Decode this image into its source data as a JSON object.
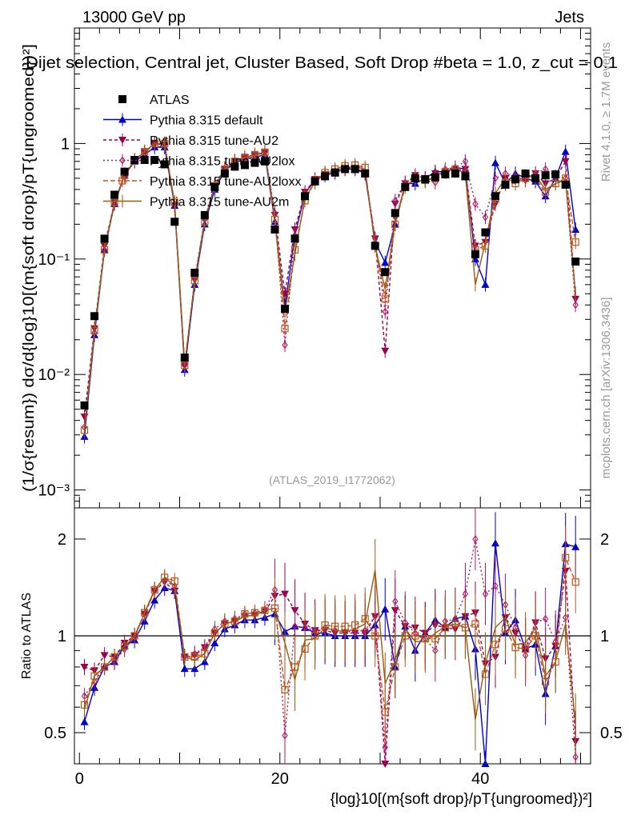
{
  "header": {
    "left": "13000 GeV pp",
    "right": "Jets",
    "title": "Dijet selection, Central jet, Cluster Based, Soft Drop #beta = 1.0, z_cut = 0.1"
  },
  "side_labels": {
    "rivet": "Rivet 4.1.0, ≥ 1.7M events",
    "mcplots": "mcplots.cern.ch [arXiv:1306.3436]"
  },
  "watermark": "(ATLAS_2019_I1772062)",
  "axes": {
    "main_ylabel": "(1/σ{resum}) dσ/d{log}10[(m{soft drop}/pT{ungroomed})²]",
    "ratio_ylabel": "Ratio to ATLAS",
    "xlabel": "{log}10[(m{soft drop}/pT{ungroomed})²]",
    "x_ticks": [
      "0",
      "20",
      "40"
    ],
    "main_y_ticks": [
      "10⁻³",
      "10⁻²",
      "10⁻¹",
      "1"
    ],
    "ratio_y_ticks": [
      "0.5",
      "1",
      "2"
    ]
  },
  "legend": [
    {
      "label": "ATLAS",
      "color": "#000000",
      "marker": "square"
    },
    {
      "label": "Pythia 8.315 default",
      "color": "#0000cc",
      "marker": "triangle"
    },
    {
      "label": "Pythia 8.315 tune-AU2",
      "color": "#99004d",
      "marker": "triangle-down"
    },
    {
      "label": "Pythia 8.315 tune-AU2lox",
      "color": "#b0176a",
      "marker": "diamond"
    },
    {
      "label": "Pythia 8.315 tune-AU2loxx",
      "color": "#c0541a",
      "marker": "open-square"
    },
    {
      "label": "Pythia 8.315 tune-AU2m",
      "color": "#9a5a10",
      "marker": "line"
    }
  ],
  "chart_data": {
    "type": "scatter",
    "title": "Dijet selection, Central jet, Cluster Based, Soft Drop #beta = 1.0, z_cut = 0.1",
    "xlabel": "{log}10[(m{soft drop}/pT{ungroomed})²]",
    "ylabel": "(1/σ{resum}) dσ/d{log}10[(m{soft drop}/pT{ungroomed})²]",
    "xlim": [
      -0.5,
      51
    ],
    "ylim_main": [
      0.0007,
      10
    ],
    "yscale_main": "log",
    "ylim_ratio": [
      0.4,
      2.5
    ],
    "yscale_ratio": "log",
    "x": [
      0.5,
      1.5,
      2.5,
      3.5,
      4.5,
      5.5,
      6.5,
      7.5,
      8.5,
      9.5,
      10.5,
      11.5,
      12.5,
      13.5,
      14.5,
      15.5,
      16.5,
      17.5,
      18.5,
      19.5,
      20.5,
      21.5,
      22.5,
      23.5,
      24.5,
      25.5,
      26.5,
      27.5,
      28.5,
      29.5,
      30.5,
      31.5,
      32.5,
      33.5,
      34.5,
      35.5,
      36.5,
      37.5,
      38.5,
      39.5,
      40.5,
      41.5,
      42.5,
      43.5,
      44.5,
      45.5,
      46.5,
      47.5,
      48.5,
      49.5
    ],
    "series": [
      {
        "name": "ATLAS",
        "values": [
          0.0054,
          0.032,
          0.15,
          0.36,
          0.57,
          0.72,
          0.72,
          0.72,
          0.66,
          0.21,
          0.014,
          0.076,
          0.24,
          0.42,
          0.55,
          0.63,
          0.65,
          0.68,
          0.7,
          0.18,
          0.037,
          0.15,
          0.35,
          0.47,
          0.52,
          0.56,
          0.6,
          0.6,
          0.55,
          0.13,
          0.077,
          0.25,
          0.42,
          0.5,
          0.49,
          0.51,
          0.54,
          0.55,
          0.52,
          0.11,
          0.17,
          0.35,
          0.44,
          0.49,
          0.55,
          0.5,
          0.53,
          0.54,
          0.44,
          0.095
        ]
      },
      {
        "name": "Pythia 8.315 default",
        "values": [
          0.0029,
          0.022,
          0.12,
          0.3,
          0.53,
          0.7,
          0.8,
          0.93,
          0.93,
          0.29,
          0.011,
          0.06,
          0.2,
          0.4,
          0.58,
          0.68,
          0.73,
          0.76,
          0.8,
          0.21,
          0.038,
          0.16,
          0.37,
          0.48,
          0.53,
          0.56,
          0.6,
          0.6,
          0.55,
          0.14,
          0.093,
          0.2,
          0.45,
          0.45,
          0.5,
          0.57,
          0.57,
          0.62,
          0.6,
          0.1,
          0.06,
          0.68,
          0.45,
          0.55,
          0.5,
          0.47,
          0.35,
          0.5,
          0.85,
          0.18
        ]
      },
      {
        "name": "Pythia 8.315 tune-AU2",
        "values": [
          0.0043,
          0.025,
          0.13,
          0.31,
          0.54,
          0.72,
          0.84,
          0.99,
          0.97,
          0.29,
          0.012,
          0.066,
          0.22,
          0.43,
          0.6,
          0.7,
          0.75,
          0.79,
          0.83,
          0.24,
          0.05,
          0.18,
          0.38,
          0.49,
          0.54,
          0.57,
          0.61,
          0.61,
          0.56,
          0.15,
          0.016,
          0.3,
          0.45,
          0.53,
          0.5,
          0.55,
          0.57,
          0.58,
          0.6,
          0.13,
          0.14,
          0.3,
          0.5,
          0.5,
          0.5,
          0.55,
          0.45,
          0.5,
          0.7,
          0.045
        ]
      },
      {
        "name": "Pythia 8.315 tune-AU2lox",
        "values": [
          0.0035,
          0.023,
          0.12,
          0.3,
          0.52,
          0.71,
          0.84,
          0.99,
          0.98,
          0.3,
          0.012,
          0.067,
          0.22,
          0.44,
          0.61,
          0.71,
          0.76,
          0.8,
          0.85,
          0.25,
          0.018,
          0.16,
          0.37,
          0.49,
          0.55,
          0.58,
          0.62,
          0.62,
          0.57,
          0.15,
          0.035,
          0.32,
          0.46,
          0.51,
          0.48,
          0.46,
          0.6,
          0.62,
          0.7,
          0.3,
          0.23,
          0.5,
          0.55,
          0.52,
          0.48,
          0.55,
          0.6,
          0.52,
          0.5,
          0.04
        ]
      },
      {
        "name": "Pythia 8.315 tune-AU2loxx",
        "values": [
          0.0033,
          0.024,
          0.12,
          0.31,
          0.53,
          0.72,
          0.85,
          1.0,
          1.0,
          0.31,
          0.012,
          0.065,
          0.21,
          0.43,
          0.6,
          0.7,
          0.76,
          0.8,
          0.84,
          0.22,
          0.025,
          0.12,
          0.32,
          0.47,
          0.56,
          0.6,
          0.64,
          0.65,
          0.62,
          0.13,
          0.045,
          0.2,
          0.42,
          0.5,
          0.48,
          0.5,
          0.57,
          0.6,
          0.55,
          0.12,
          0.13,
          0.33,
          0.46,
          0.45,
          0.5,
          0.5,
          0.38,
          0.45,
          0.5,
          0.14
        ]
      },
      {
        "name": "Pythia 8.315 tune-AU2m",
        "values": [
          0.0032,
          0.024,
          0.12,
          0.31,
          0.53,
          0.71,
          0.85,
          1.0,
          1.0,
          0.3,
          0.012,
          0.064,
          0.21,
          0.43,
          0.6,
          0.7,
          0.75,
          0.79,
          0.84,
          0.22,
          0.035,
          0.11,
          0.34,
          0.46,
          0.55,
          0.58,
          0.62,
          0.63,
          0.6,
          0.13,
          0.055,
          0.21,
          0.44,
          0.48,
          0.47,
          0.52,
          0.58,
          0.6,
          0.55,
          0.06,
          0.14,
          0.37,
          0.5,
          0.46,
          0.52,
          0.53,
          0.4,
          0.45,
          0.48,
          0.05
        ]
      }
    ],
    "ratio_series": [
      {
        "name": "Pythia 8.315 default",
        "values": [
          0.54,
          0.69,
          0.8,
          0.83,
          0.93,
          0.97,
          1.11,
          1.29,
          1.41,
          1.38,
          0.79,
          0.79,
          0.83,
          0.95,
          1.05,
          1.08,
          1.12,
          1.12,
          1.14,
          1.17,
          1.03,
          1.07,
          1.06,
          1.02,
          1.02,
          1.0,
          1.0,
          1.0,
          1.0,
          1.08,
          1.21,
          0.8,
          1.07,
          0.9,
          1.02,
          1.12,
          1.06,
          1.13,
          1.15,
          0.91,
          0.35,
          1.94,
          1.02,
          1.12,
          0.91,
          0.94,
          0.66,
          0.93,
          1.93,
          1.89
        ]
      },
      {
        "name": "Pythia 8.315 tune-AU2",
        "values": [
          0.8,
          0.78,
          0.87,
          0.86,
          0.95,
          1.0,
          1.17,
          1.38,
          1.47,
          1.38,
          0.86,
          0.87,
          0.92,
          1.02,
          1.09,
          1.11,
          1.15,
          1.16,
          1.19,
          1.33,
          1.35,
          1.2,
          1.09,
          1.04,
          1.04,
          1.02,
          1.02,
          1.02,
          1.02,
          1.15,
          0.21,
          1.2,
          1.07,
          1.06,
          1.02,
          1.08,
          1.06,
          1.05,
          1.15,
          1.18,
          0.82,
          0.86,
          1.14,
          1.02,
          0.91,
          1.1,
          0.85,
          0.93,
          1.59,
          0.47
        ]
      },
      {
        "name": "Pythia 8.315 tune-AU2lox",
        "values": [
          0.65,
          0.72,
          0.8,
          0.83,
          0.91,
          0.99,
          1.17,
          1.38,
          1.48,
          1.43,
          0.86,
          0.88,
          0.92,
          1.05,
          1.11,
          1.13,
          1.17,
          1.18,
          1.21,
          1.39,
          0.49,
          1.07,
          1.06,
          1.04,
          1.06,
          1.04,
          1.03,
          1.03,
          1.04,
          1.15,
          0.45,
          1.28,
          1.1,
          1.02,
          0.98,
          0.9,
          1.11,
          1.13,
          1.35,
          2.0,
          1.35,
          1.43,
          1.25,
          1.06,
          0.87,
          1.1,
          1.13,
          0.96,
          1.14,
          0.42
        ]
      },
      {
        "name": "Pythia 8.315 tune-AU2loxx",
        "values": [
          0.61,
          0.75,
          0.8,
          0.86,
          0.93,
          1.0,
          1.18,
          1.39,
          1.52,
          1.48,
          0.86,
          0.86,
          0.88,
          1.02,
          1.09,
          1.11,
          1.17,
          1.18,
          1.2,
          1.22,
          0.68,
          0.8,
          0.91,
          1.0,
          1.08,
          1.07,
          1.07,
          1.08,
          1.13,
          1.0,
          0.58,
          0.8,
          1.0,
          1.0,
          0.98,
          0.98,
          1.06,
          1.09,
          1.06,
          1.09,
          0.76,
          0.94,
          1.05,
          0.92,
          0.91,
          1.0,
          0.72,
          0.83,
          1.75,
          1.47
        ]
      },
      {
        "name": "Pythia 8.315 tune-AU2m",
        "values": [
          0.59,
          0.75,
          0.8,
          0.86,
          0.93,
          0.99,
          1.18,
          1.39,
          1.52,
          1.43,
          0.86,
          0.84,
          0.88,
          1.02,
          1.09,
          1.11,
          1.15,
          1.16,
          1.2,
          1.22,
          0.95,
          0.73,
          0.97,
          0.98,
          1.06,
          1.04,
          1.03,
          1.05,
          1.09,
          1.6,
          0.71,
          0.84,
          1.05,
          0.96,
          0.96,
          1.02,
          1.07,
          1.09,
          1.06,
          0.55,
          0.82,
          1.06,
          1.14,
          0.94,
          0.95,
          1.06,
          0.75,
          0.83,
          1.09,
          0.53
        ]
      }
    ]
  }
}
